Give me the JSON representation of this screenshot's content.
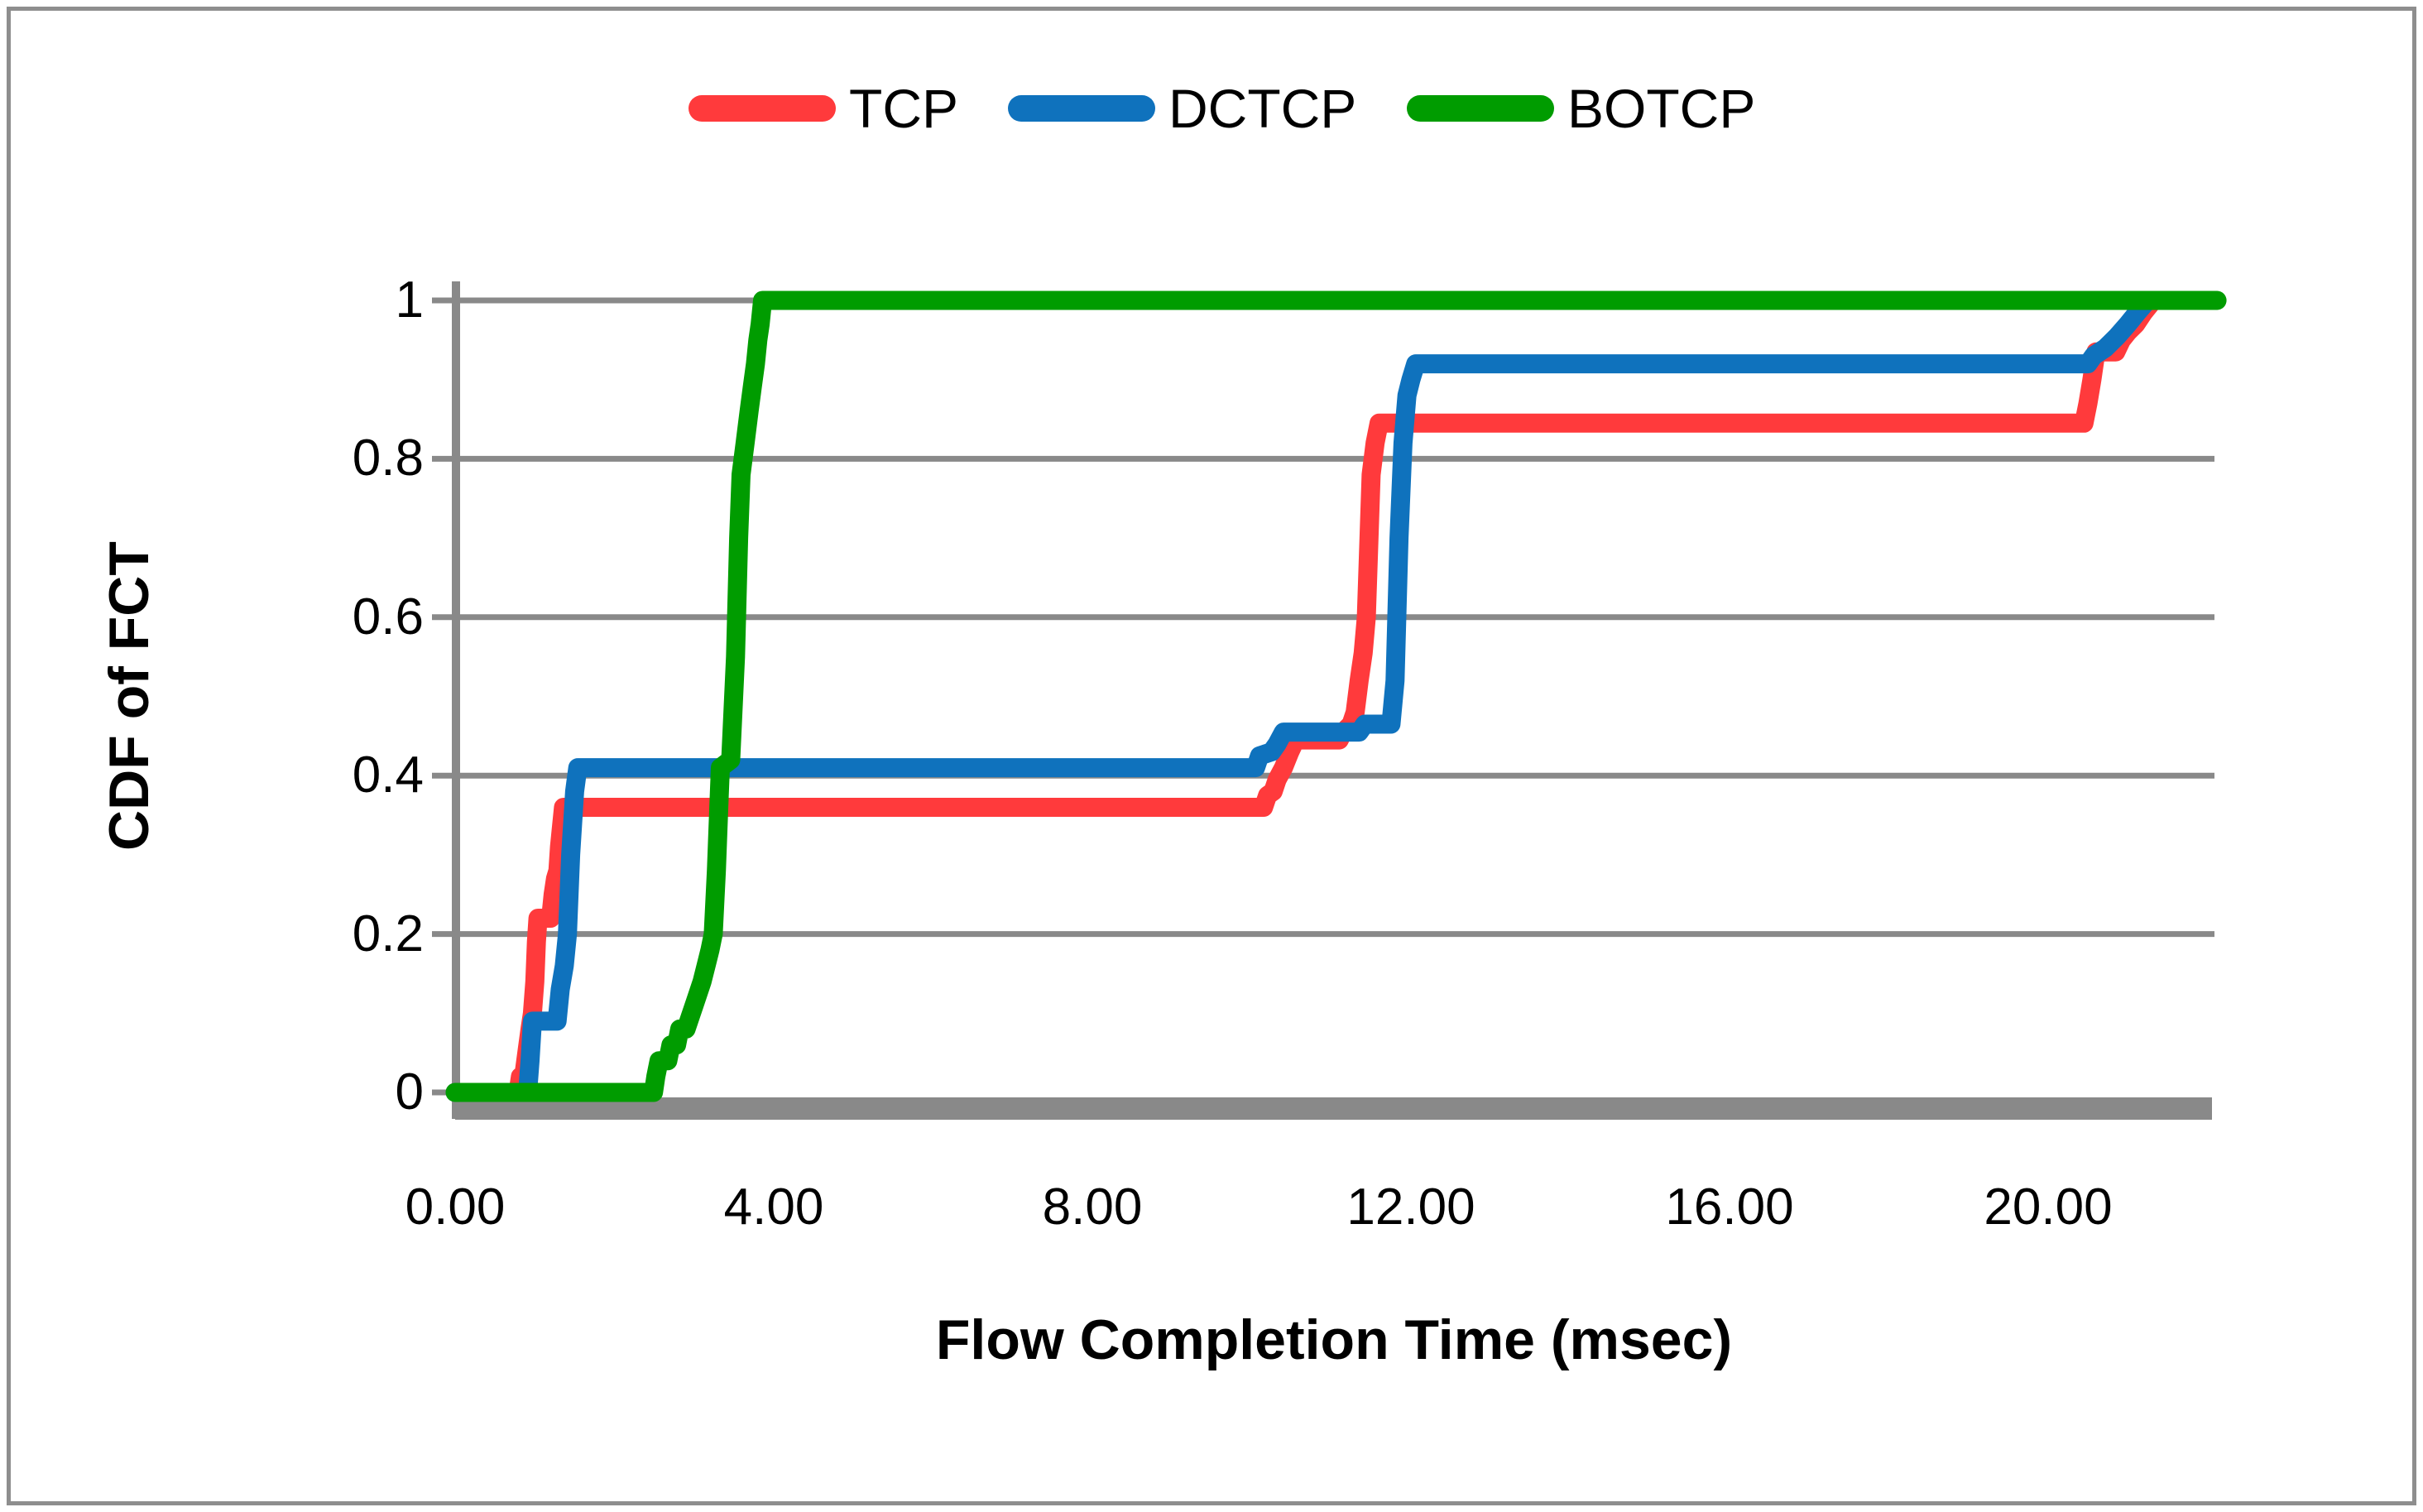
{
  "chart_data": {
    "type": "line",
    "subtype": "cdf-step-curves",
    "title": "",
    "xlabel": "Flow Completion Time (msec)",
    "ylabel": "CDF of FCT",
    "x_tick_labels": [
      "0.00",
      "4.00",
      "8.00",
      "12.00",
      "16.00",
      "20.00"
    ],
    "x_tick_values": [
      0,
      4,
      8,
      12,
      16,
      20
    ],
    "y_tick_labels": [
      "0",
      "0.2",
      "0.4",
      "0.6",
      "0.8",
      "1"
    ],
    "y_tick_values": [
      0,
      0.2,
      0.4,
      0.6,
      0.8,
      1
    ],
    "xlim": [
      0,
      22.1
    ],
    "ylim": [
      0,
      1
    ],
    "grid": "horizontal-only",
    "legend_position": "top-center",
    "colors": {
      "tcp": "#ff3a3c",
      "dctcp": "#0f72bd",
      "botcp": "#009c00",
      "grid": "#898989",
      "axis": "#898989",
      "baseline_bar": "#898989",
      "frame": "#8e8e8e",
      "text": "#000000"
    },
    "series": [
      {
        "name": "TCP",
        "color_key": "tcp",
        "points": [
          [
            0,
            0
          ],
          [
            0.79,
            0
          ],
          [
            0.82,
            0.02
          ],
          [
            0.86,
            0.02
          ],
          [
            0.9,
            0.05
          ],
          [
            0.94,
            0.08
          ],
          [
            0.97,
            0.1
          ],
          [
            1.0,
            0.14
          ],
          [
            1.02,
            0.19
          ],
          [
            1.04,
            0.22
          ],
          [
            1.2,
            0.22
          ],
          [
            1.23,
            0.25
          ],
          [
            1.26,
            0.27
          ],
          [
            1.29,
            0.28
          ],
          [
            1.31,
            0.31
          ],
          [
            1.33,
            0.33
          ],
          [
            1.36,
            0.36
          ],
          [
            10.15,
            0.36
          ],
          [
            10.2,
            0.375
          ],
          [
            10.27,
            0.38
          ],
          [
            10.32,
            0.395
          ],
          [
            10.4,
            0.41
          ],
          [
            10.48,
            0.43
          ],
          [
            10.55,
            0.445
          ],
          [
            11.1,
            0.445
          ],
          [
            11.15,
            0.455
          ],
          [
            11.25,
            0.465
          ],
          [
            11.3,
            0.48
          ],
          [
            11.35,
            0.52
          ],
          [
            11.4,
            0.555
          ],
          [
            11.44,
            0.6
          ],
          [
            11.5,
            0.78
          ],
          [
            11.55,
            0.82
          ],
          [
            11.6,
            0.845
          ],
          [
            20.45,
            0.845
          ],
          [
            20.5,
            0.87
          ],
          [
            20.55,
            0.9
          ],
          [
            20.6,
            0.935
          ],
          [
            20.85,
            0.935
          ],
          [
            20.92,
            0.95
          ],
          [
            21.0,
            0.96
          ],
          [
            21.1,
            0.97
          ],
          [
            21.2,
            0.985
          ],
          [
            21.32,
            1.0
          ],
          [
            22.1,
            1.0
          ]
        ]
      },
      {
        "name": "DCTCP",
        "color_key": "dctcp",
        "points": [
          [
            0,
            0
          ],
          [
            0.91,
            0
          ],
          [
            0.94,
            0.04
          ],
          [
            0.97,
            0.09
          ],
          [
            1.28,
            0.09
          ],
          [
            1.32,
            0.13
          ],
          [
            1.37,
            0.16
          ],
          [
            1.41,
            0.2
          ],
          [
            1.45,
            0.3
          ],
          [
            1.5,
            0.38
          ],
          [
            1.54,
            0.41
          ],
          [
            10.05,
            0.41
          ],
          [
            10.1,
            0.425
          ],
          [
            10.25,
            0.43
          ],
          [
            10.32,
            0.44
          ],
          [
            10.4,
            0.455
          ],
          [
            11.35,
            0.455
          ],
          [
            11.42,
            0.465
          ],
          [
            11.75,
            0.465
          ],
          [
            11.8,
            0.52
          ],
          [
            11.85,
            0.7
          ],
          [
            11.9,
            0.82
          ],
          [
            11.95,
            0.88
          ],
          [
            12.0,
            0.9
          ],
          [
            12.06,
            0.92
          ],
          [
            20.5,
            0.92
          ],
          [
            20.57,
            0.93
          ],
          [
            20.72,
            0.94
          ],
          [
            20.87,
            0.955
          ],
          [
            21.0,
            0.97
          ],
          [
            21.12,
            0.985
          ],
          [
            21.25,
            1.0
          ],
          [
            22.1,
            1.0
          ]
        ]
      },
      {
        "name": "BOTCP",
        "color_key": "botcp",
        "points": [
          [
            0,
            0
          ],
          [
            2.49,
            0
          ],
          [
            2.52,
            0.02
          ],
          [
            2.56,
            0.04
          ],
          [
            2.67,
            0.04
          ],
          [
            2.71,
            0.06
          ],
          [
            2.78,
            0.06
          ],
          [
            2.82,
            0.08
          ],
          [
            2.9,
            0.08
          ],
          [
            2.95,
            0.095
          ],
          [
            3.0,
            0.11
          ],
          [
            3.05,
            0.125
          ],
          [
            3.1,
            0.14
          ],
          [
            3.15,
            0.16
          ],
          [
            3.2,
            0.18
          ],
          [
            3.24,
            0.2
          ],
          [
            3.28,
            0.28
          ],
          [
            3.31,
            0.36
          ],
          [
            3.33,
            0.41
          ],
          [
            3.46,
            0.42
          ],
          [
            3.52,
            0.55
          ],
          [
            3.56,
            0.7
          ],
          [
            3.59,
            0.78
          ],
          [
            3.64,
            0.82
          ],
          [
            3.69,
            0.86
          ],
          [
            3.73,
            0.89
          ],
          [
            3.77,
            0.92
          ],
          [
            3.8,
            0.95
          ],
          [
            3.83,
            0.97
          ],
          [
            3.86,
            1.0
          ],
          [
            22.12,
            1.0
          ]
        ]
      }
    ]
  }
}
